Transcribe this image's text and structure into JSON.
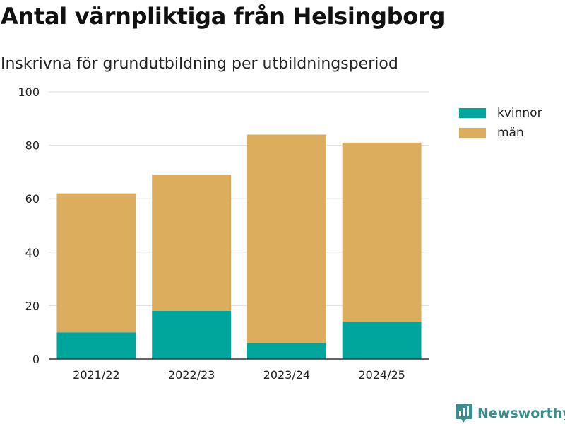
{
  "title": "Antal värnpliktiga från Helsingborg",
  "subtitle": "Inskrivna för grundutbildning per utbildningsperiod",
  "brand": {
    "name": "Newsworthy",
    "icon": "newsworthy-logo-icon",
    "color": "#3a8f8c"
  },
  "chart_data": {
    "type": "bar",
    "stacked": true,
    "title": "Antal värnpliktiga från Helsingborg",
    "subtitle": "Inskrivna för grundutbildning per utbildningsperiod",
    "categories": [
      "2021/22",
      "2022/23",
      "2023/24",
      "2024/25"
    ],
    "series": [
      {
        "name": "kvinnor",
        "color": "#00a69c",
        "values": [
          10,
          18,
          6,
          14
        ]
      },
      {
        "name": "män",
        "color": "#dbad5c",
        "values": [
          52,
          51,
          78,
          67
        ]
      }
    ],
    "ylim": [
      0,
      100
    ],
    "yticks": [
      0,
      20,
      40,
      60,
      80,
      100
    ],
    "xlabel": "",
    "ylabel": "",
    "grid": true,
    "legend": "top-right"
  }
}
